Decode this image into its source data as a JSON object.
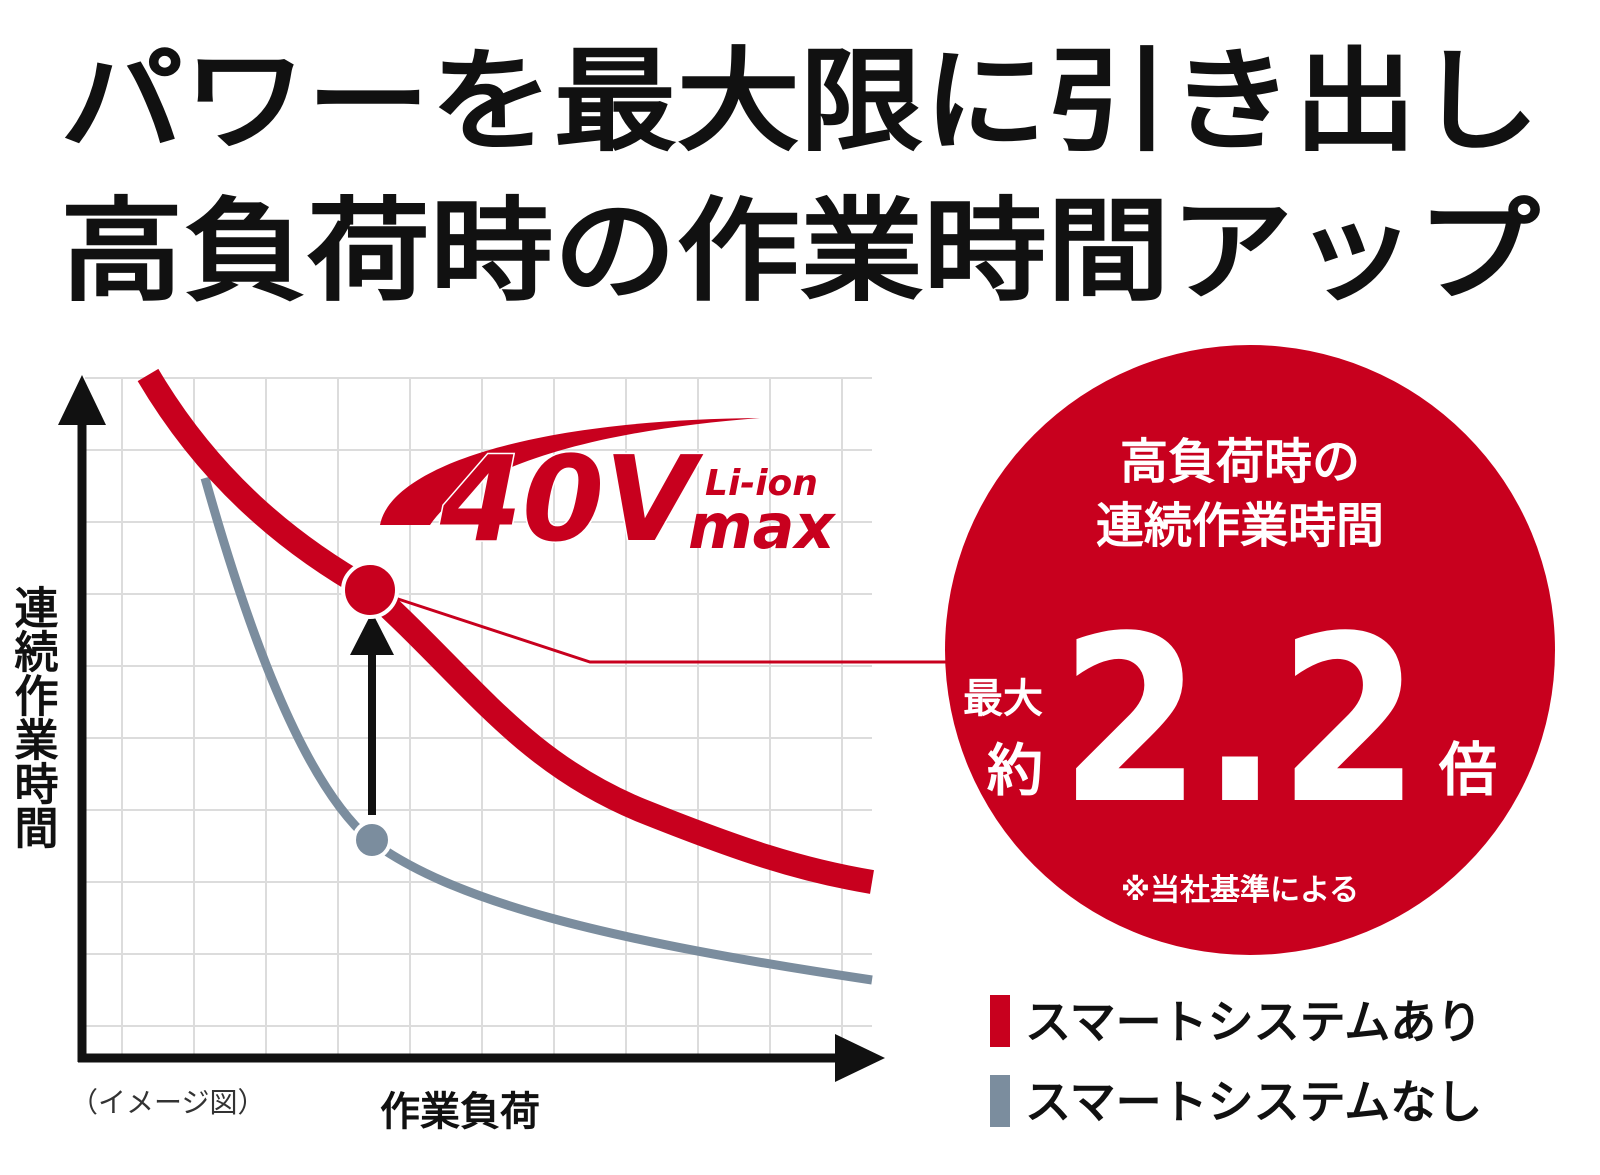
{
  "header": {
    "title_line1": "パワーを最大限に引き出し",
    "title_line2": "高負荷時の作業時間アップ"
  },
  "graph": {
    "y_axis_label": "連続作業時間",
    "x_axis_label": "作業負荷",
    "note": "（イメージ図）",
    "legend": [
      "スマートシステムあり",
      "スマートシステムなし"
    ]
  },
  "logo": {
    "voltage": "40V",
    "cell": "Li-ion",
    "suffix": "max"
  },
  "badge": {
    "line1": "高負荷時の",
    "line2": "連続作業時間",
    "prefix1": "最大",
    "prefix2": "約",
    "figure": "2.2",
    "unit": "倍",
    "footnote": "※当社基準による"
  }
}
